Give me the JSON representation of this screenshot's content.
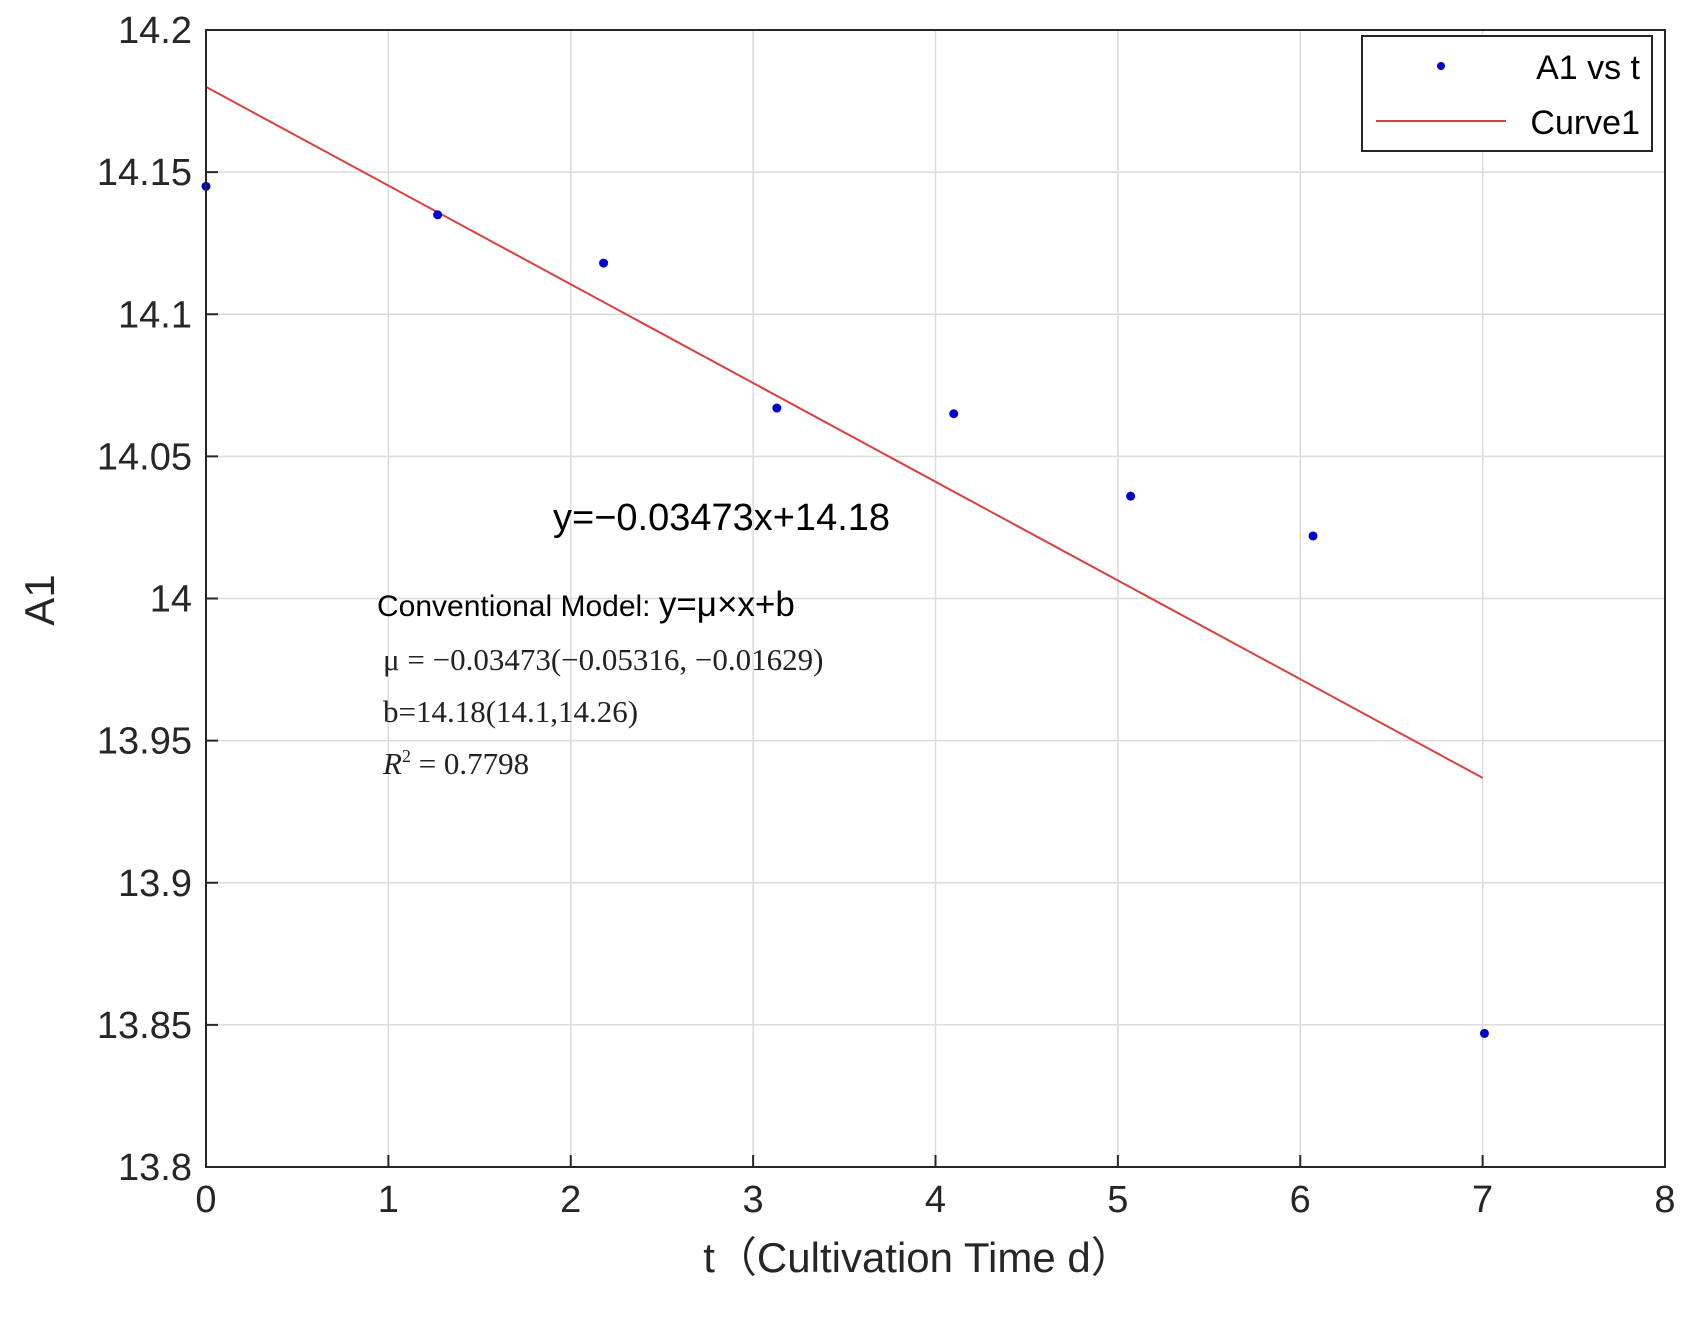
{
  "chart_data": {
    "type": "scatter",
    "xlabel": "t（Cultivation Time d）",
    "ylabel": "A1",
    "xlim": [
      0,
      8
    ],
    "ylim": [
      13.8,
      14.2
    ],
    "x_ticks": [
      "0",
      "1",
      "2",
      "3",
      "4",
      "5",
      "6",
      "7",
      "8"
    ],
    "y_ticks": [
      "13.8",
      "13.85",
      "13.9",
      "13.95",
      "14",
      "14.05",
      "14.1",
      "14.15",
      "14.2"
    ],
    "grid": true,
    "legend_position": "top-right",
    "series": [
      {
        "name": "A1 vs t",
        "kind": "scatter",
        "color": "#0000cc",
        "x": [
          0.0,
          1.27,
          2.18,
          3.13,
          4.1,
          5.07,
          6.07,
          7.01
        ],
        "y": [
          14.145,
          14.135,
          14.118,
          14.067,
          14.065,
          14.036,
          14.022,
          13.847
        ]
      },
      {
        "name": "Curve1",
        "kind": "line",
        "color": "#d94040",
        "slope": -0.03473,
        "intercept": 14.18,
        "x_range": [
          0,
          7
        ]
      }
    ],
    "annotations": {
      "fit_equation": "y=−0.03473x+14.18",
      "model_label": "Conventional Model: ",
      "model_formula": "y=μ×x+b",
      "mu_line": "μ = −0.03473(−0.05316, −0.01629)",
      "b_line": "b=14.18(14.1,14.26)",
      "r2_prefix": "R",
      "r2_exp": "2",
      "r2_value": " = 0.7798"
    }
  }
}
